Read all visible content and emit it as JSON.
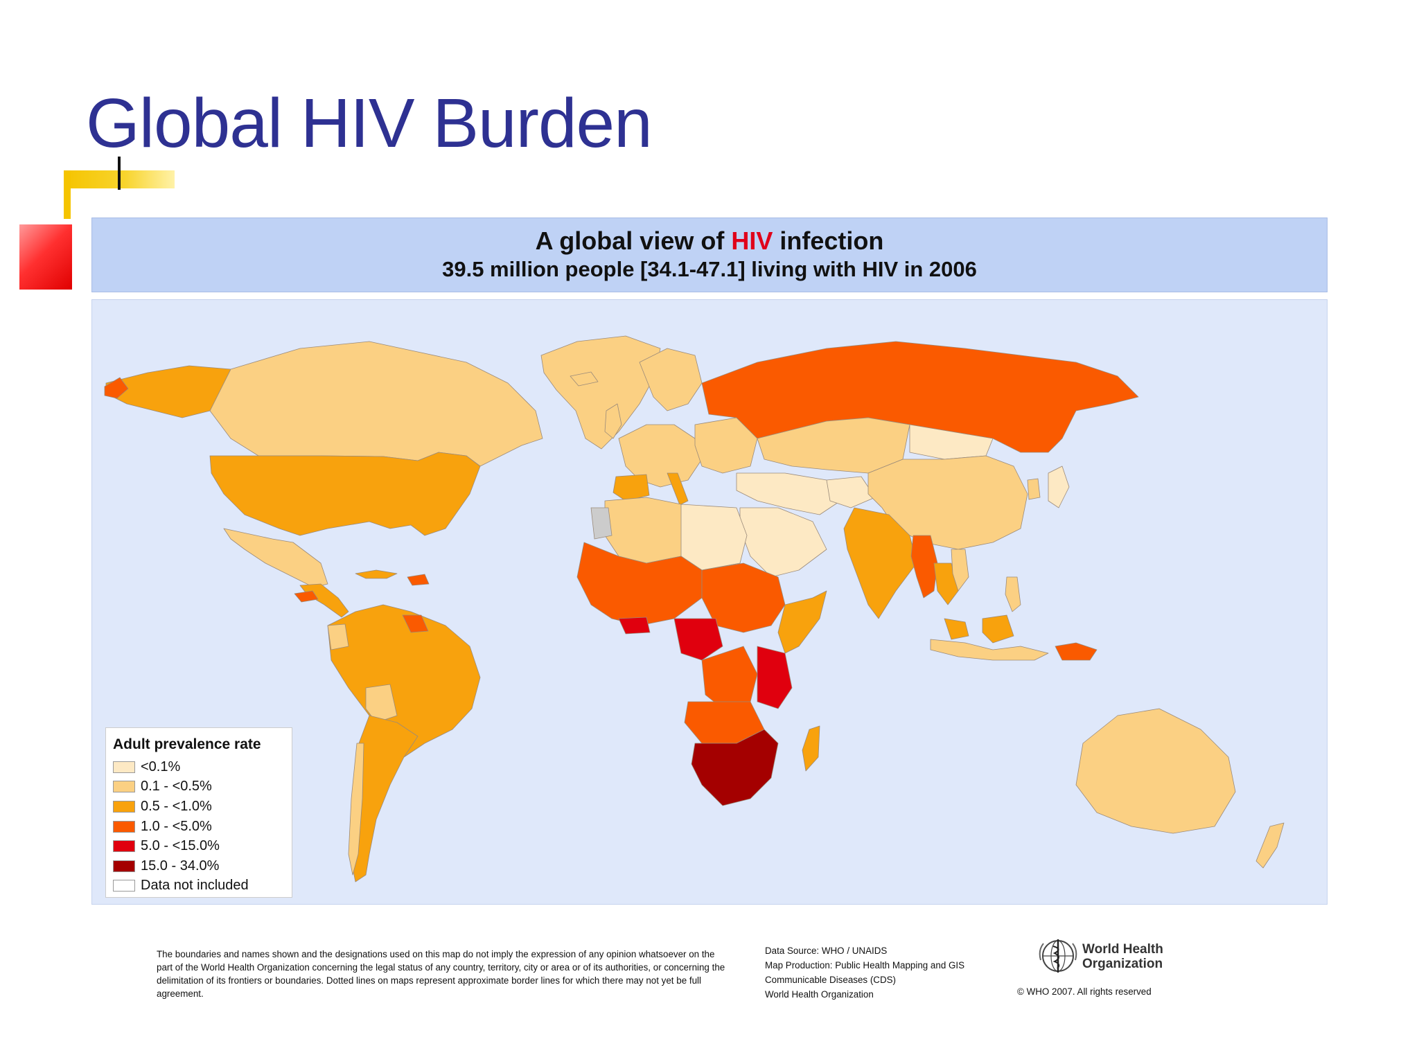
{
  "slide": {
    "title": "Global HIV Burden"
  },
  "map": {
    "title_prefix": "A global view of ",
    "title_highlight": "HIV",
    "title_suffix": " infection",
    "subtitle": "39.5 million people [34.1-47.1] living with HIV in 2006",
    "ocean_color": "#dfe8fa",
    "legend": {
      "title": "Adult prevalence rate",
      "items": [
        {
          "label": "<0.1%",
          "color": "#fde9c4"
        },
        {
          "label": "0.1 - <0.5%",
          "color": "#fbd083"
        },
        {
          "label": "0.5 - <1.0%",
          "color": "#f8a20d"
        },
        {
          "label": "1.0 - <5.0%",
          "color": "#fa5a00"
        },
        {
          "label": "5.0 - <15.0%",
          "color": "#e0000e"
        },
        {
          "label": "15.0 - 34.0%",
          "color": "#a40000"
        },
        {
          "label": "Data not included",
          "color": "#ffffff"
        }
      ]
    }
  },
  "footer": {
    "disclaimer": "The boundaries and names shown and the designations used on this map do not imply the expression of any opinion whatsoever on the part of the World Health Organization concerning the legal status of any country, territory, city or area or of its authorities, or concerning the delimitation of its frontiers or boundaries.  Dotted lines on maps represent approximate border lines for which there may not yet be full agreement.",
    "source_lines": [
      "Data Source: WHO / UNAIDS",
      "Map Production: Public Health Mapping and GIS",
      "Communicable Diseases (CDS)",
      "World Health Organization"
    ],
    "who_name_line1": "World Health",
    "who_name_line2": "Organization",
    "copyright": "© WHO 2007. All rights reserved"
  }
}
